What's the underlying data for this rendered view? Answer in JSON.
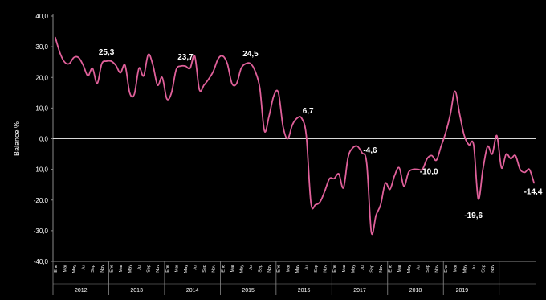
{
  "chart_data": {
    "type": "line",
    "ylabel": "Balance %",
    "ylim": [
      -40,
      40
    ],
    "y_ticks": [
      "-40,0",
      "-30,0",
      "-20,0",
      "-10,0",
      "0,0",
      "10,0",
      "20,0",
      "30,0",
      "40,0"
    ],
    "month_labels": [
      "Ene",
      "Mar",
      "May",
      "Jul",
      "Sep",
      "Nov"
    ],
    "years": [
      "2012",
      "2013",
      "2014",
      "2015",
      "2016",
      "2017",
      "2018",
      "2019"
    ],
    "reference_line": 0,
    "colors": {
      "background": "#000000",
      "series": "#e0609a",
      "text": "#ffffff",
      "axis": "#8a8a8a"
    },
    "series": [
      {
        "points": [
          [
            0,
            33
          ],
          [
            1,
            28
          ],
          [
            2,
            25
          ],
          [
            3,
            24.5
          ],
          [
            4,
            26.5
          ],
          [
            5,
            26.5
          ],
          [
            6,
            24
          ],
          [
            7,
            20.5
          ],
          [
            8,
            23
          ],
          [
            9,
            18
          ],
          [
            10,
            24.5
          ],
          [
            11,
            25.3
          ],
          [
            12,
            25.3
          ],
          [
            13,
            24
          ],
          [
            14,
            21.5
          ],
          [
            15,
            24
          ],
          [
            16,
            15
          ],
          [
            17,
            14.5
          ],
          [
            18,
            23
          ],
          [
            19,
            20.5
          ],
          [
            20,
            27.5
          ],
          [
            21,
            24
          ],
          [
            22,
            17.5
          ],
          [
            23,
            20
          ],
          [
            24,
            13
          ],
          [
            25,
            15
          ],
          [
            26,
            22.5
          ],
          [
            27,
            23.7
          ],
          [
            28,
            23.7
          ],
          [
            29,
            23
          ],
          [
            30,
            27
          ],
          [
            31,
            16
          ],
          [
            32,
            17.5
          ],
          [
            33,
            19.5
          ],
          [
            34,
            22
          ],
          [
            35,
            26
          ],
          [
            36,
            27
          ],
          [
            37,
            24.5
          ],
          [
            38,
            18
          ],
          [
            39,
            18
          ],
          [
            40,
            23
          ],
          [
            41,
            24.5
          ],
          [
            42,
            24.5
          ],
          [
            43,
            22
          ],
          [
            44,
            16.5
          ],
          [
            45,
            2.5
          ],
          [
            46,
            7.5
          ],
          [
            47,
            14
          ],
          [
            48,
            15
          ],
          [
            49,
            4
          ],
          [
            50,
            0
          ],
          [
            51,
            4.5
          ],
          [
            52,
            6.7
          ],
          [
            53,
            6.7
          ],
          [
            54,
            1
          ],
          [
            55,
            -21
          ],
          [
            56,
            -21.5
          ],
          [
            57,
            -20.5
          ],
          [
            58,
            -17
          ],
          [
            59,
            -13
          ],
          [
            60,
            -13
          ],
          [
            61,
            -11.5
          ],
          [
            62,
            -16
          ],
          [
            63,
            -6
          ],
          [
            64,
            -3
          ],
          [
            65,
            -2.5
          ],
          [
            66,
            -4.6
          ],
          [
            67,
            -8
          ],
          [
            68,
            -30.5
          ],
          [
            69,
            -25
          ],
          [
            70,
            -21.5
          ],
          [
            71,
            -14.5
          ],
          [
            72,
            -16.5
          ],
          [
            73,
            -12
          ],
          [
            74,
            -9.5
          ],
          [
            75,
            -15.5
          ],
          [
            76,
            -11
          ],
          [
            77,
            -10
          ],
          [
            78,
            -10
          ],
          [
            79,
            -10
          ],
          [
            80,
            -6.5
          ],
          [
            81,
            -5.5
          ],
          [
            82,
            -7
          ],
          [
            83,
            -2.5
          ],
          [
            84,
            2
          ],
          [
            85,
            8
          ],
          [
            86,
            15.5
          ],
          [
            87,
            8
          ],
          [
            88,
            1
          ],
          [
            89,
            -2
          ],
          [
            90,
            -2
          ],
          [
            91,
            -19.6
          ],
          [
            92,
            -10
          ],
          [
            93,
            -2.5
          ],
          [
            94,
            -5
          ],
          [
            95,
            1
          ],
          [
            96,
            -9.5
          ],
          [
            97,
            -5
          ],
          [
            98,
            -6.5
          ],
          [
            99,
            -5.5
          ],
          [
            100,
            -10
          ],
          [
            101,
            -11
          ],
          [
            102,
            -10
          ],
          [
            103,
            -14.4
          ]
        ]
      }
    ],
    "annotations": [
      {
        "month": 11,
        "value": 25.3,
        "text": "25,3"
      },
      {
        "month": 28,
        "value": 23.7,
        "text": "23,7"
      },
      {
        "month": 42,
        "value": 24.5,
        "text": "24,5"
      },
      {
        "month": 53,
        "value": 6.7,
        "text": "6,7"
      },
      {
        "month": 66,
        "value": -4.6,
        "text": "-4,6"
      },
      {
        "month": 79,
        "value": -10,
        "text": "-10,0"
      },
      {
        "month": 91,
        "value": -19.6,
        "text": "-19,6"
      },
      {
        "month": 103,
        "value": -14.4,
        "text": "-14,4"
      }
    ]
  }
}
